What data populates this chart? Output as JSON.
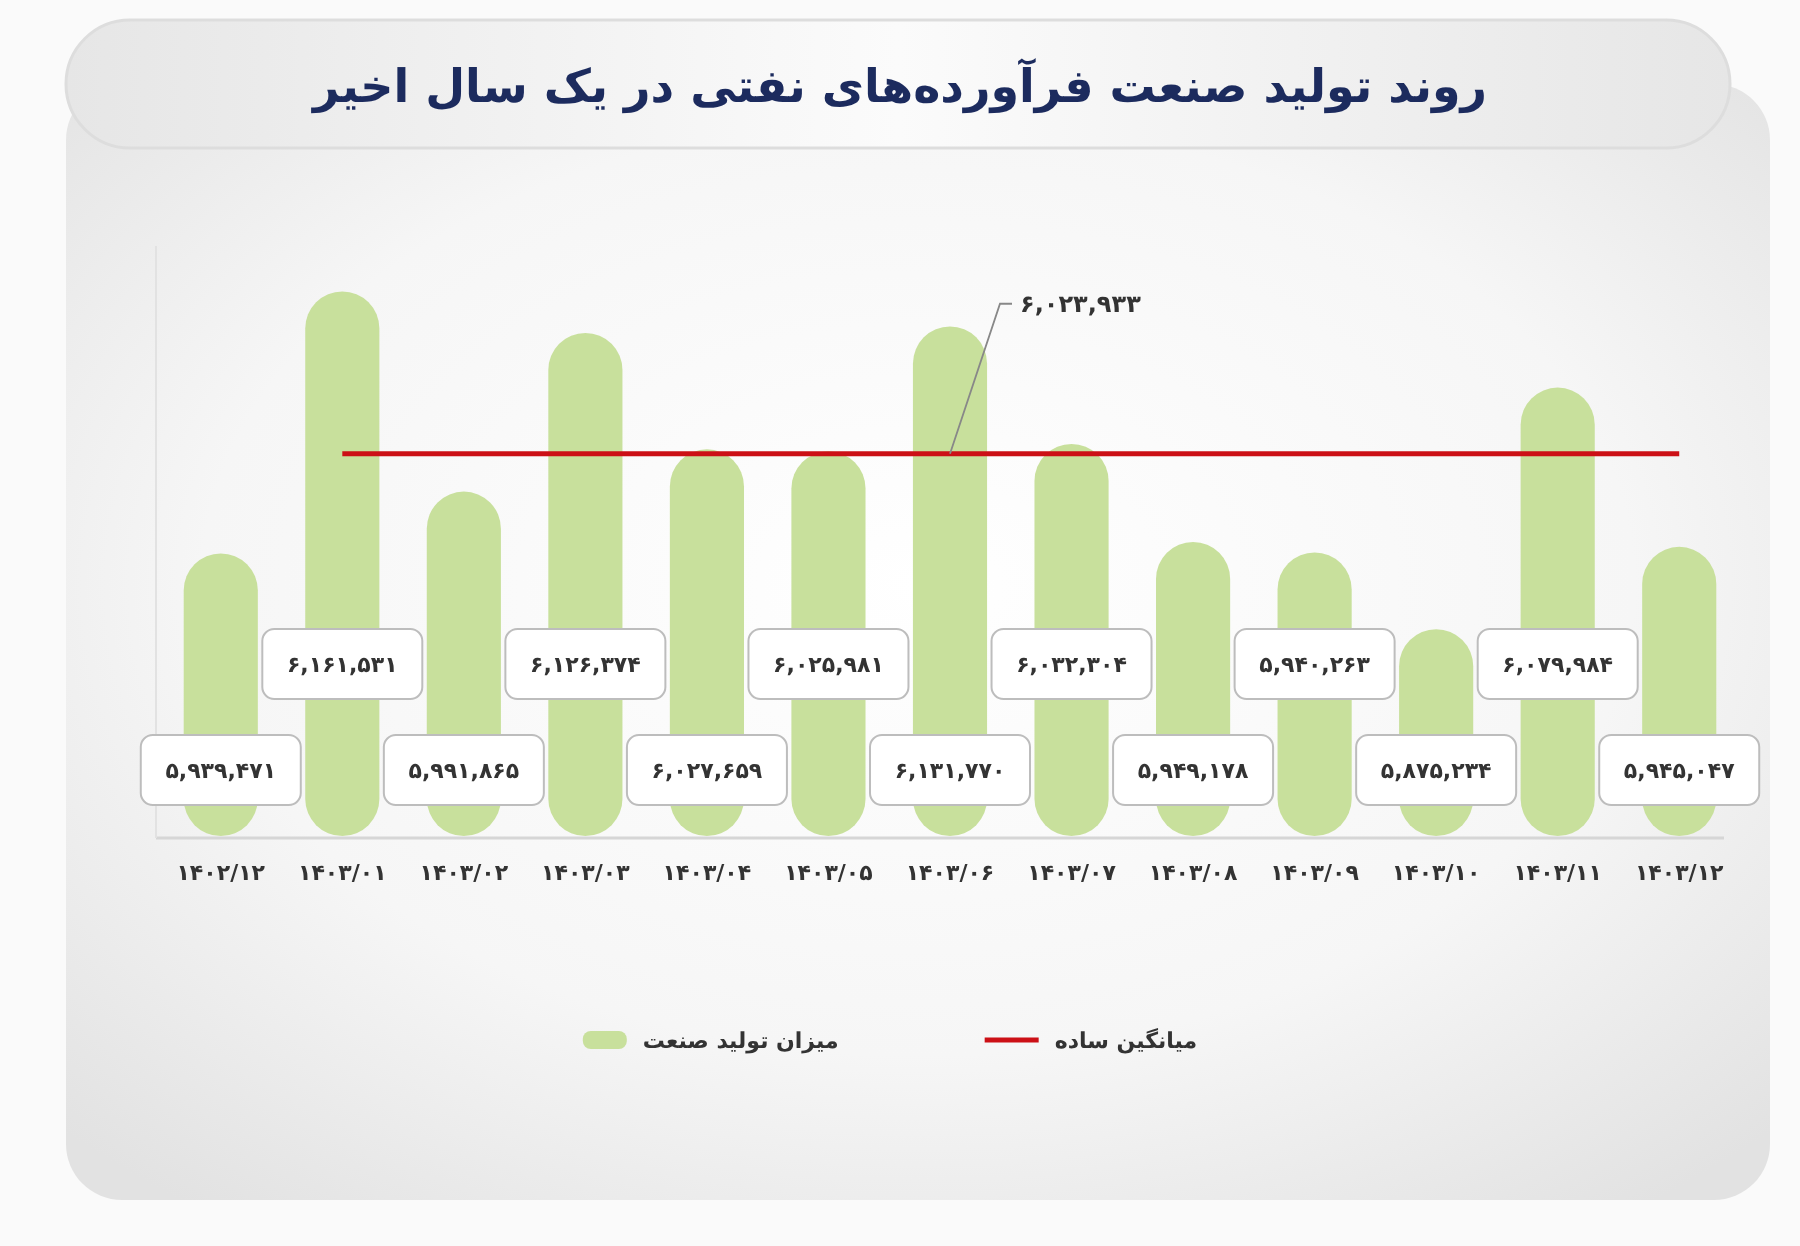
{
  "chart_data": {
    "type": "bar",
    "title": "روند تولید صنعت فرآورده‌های نفتی در یک سال اخیر",
    "categories": [
      "۱۴۰۲/۱۲",
      "۱۴۰۳/۰۱",
      "۱۴۰۳/۰۲",
      "۱۴۰۳/۰۳",
      "۱۴۰۳/۰۴",
      "۱۴۰۳/۰۵",
      "۱۴۰۳/۰۶",
      "۱۴۰۳/۰۷",
      "۱۴۰۳/۰۸",
      "۱۴۰۳/۰۹",
      "۱۴۰۳/۱۰",
      "۱۴۰۳/۱۱",
      "۱۴۰۳/۱۲"
    ],
    "series": [
      {
        "name": "میزان تولید صنعت",
        "color": "#c8e09c",
        "values": [
          5939471,
          6161531,
          5991865,
          6126374,
          6027659,
          6025981,
          6131770,
          6032304,
          5949178,
          5940263,
          5875234,
          6079984,
          5945047
        ],
        "value_labels": [
          "۵,۹۳۹,۴۷۱",
          "۶,۱۶۱,۵۳۱",
          "۵,۹۹۱,۸۶۵",
          "۶,۱۲۶,۳۷۴",
          "۶,۰۲۷,۶۵۹",
          "۶,۰۲۵,۹۸۱",
          "۶,۱۳۱,۷۷۰",
          "۶,۰۳۲,۳۰۴",
          "۵,۹۴۹,۱۷۸",
          "۵,۹۴۰,۲۶۳",
          "۵,۸۷۵,۲۳۴",
          "۶,۰۷۹,۹۸۴",
          "۵,۹۴۵,۰۴۷"
        ]
      },
      {
        "name": "میانگین ساده",
        "type": "line",
        "color": "#cc1016",
        "values": [
          null,
          6023933,
          6023933,
          6023933,
          6023933,
          6023933,
          6023933,
          6023933,
          6023933,
          6023933,
          6023933,
          6023933,
          6023933
        ],
        "value_labels": [
          null,
          null,
          null,
          null,
          null,
          null,
          "۶,۰۲۳,۹۳۳",
          null,
          null,
          null,
          null,
          null,
          null
        ]
      }
    ],
    "ylim": [
      5700000,
      6200000
    ],
    "tick_labels": "x",
    "legend": "bottom"
  }
}
